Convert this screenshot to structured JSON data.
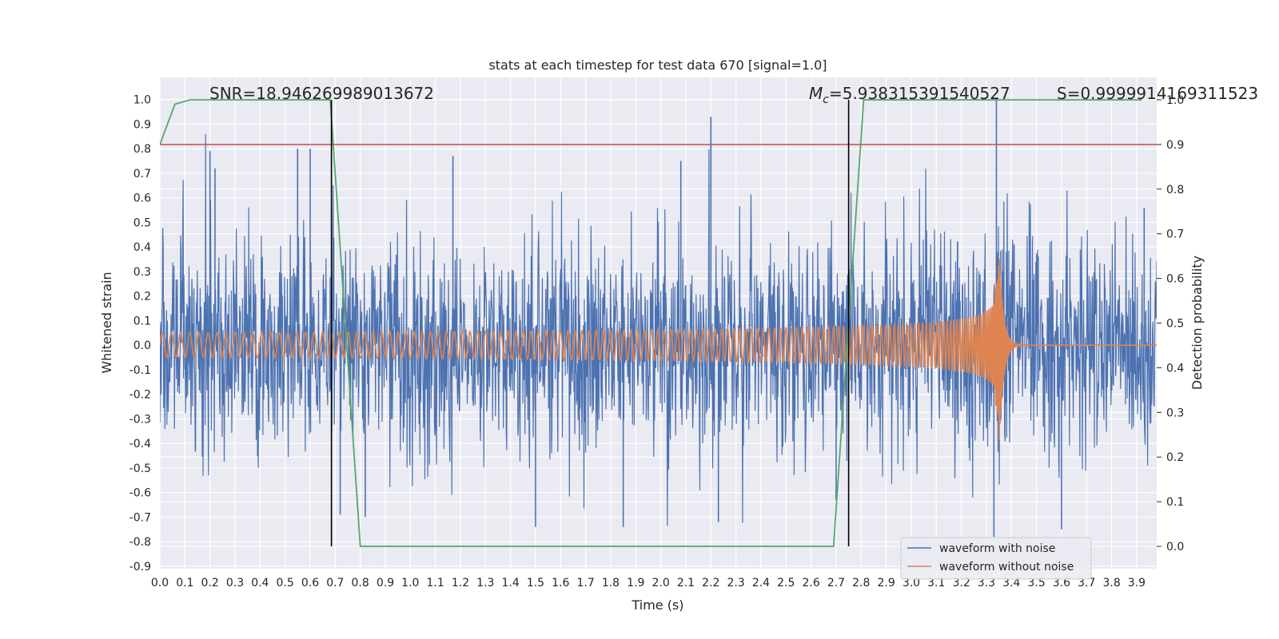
{
  "chart_data": {
    "type": "line",
    "title": "stats at each timestep for test data 670 [signal=1.0]",
    "xlabel": "Time (s)",
    "ylabel": "Whitened strain",
    "ylabel_right": "Detection probability",
    "xlim": [
      0.0,
      3.98
    ],
    "ylim": [
      -0.91,
      1.09
    ],
    "ylim_right": [
      -0.05,
      1.05
    ],
    "x_ticks": [
      "0.0",
      "0.1",
      "0.2",
      "0.3",
      "0.4",
      "0.5",
      "0.6",
      "0.7",
      "0.8",
      "0.9",
      "1.0",
      "1.1",
      "1.2",
      "1.3",
      "1.4",
      "1.5",
      "1.6",
      "1.7",
      "1.8",
      "1.9",
      "2.0",
      "2.1",
      "2.2",
      "2.3",
      "2.4",
      "2.5",
      "2.6",
      "2.7",
      "2.8",
      "2.9",
      "3.0",
      "3.1",
      "3.2",
      "3.3",
      "3.4",
      "3.5",
      "3.6",
      "3.7",
      "3.8",
      "3.9"
    ],
    "y_ticks": [
      "1.0",
      "0.9",
      "0.8",
      "0.7",
      "0.6",
      "0.5",
      "0.4",
      "0.3",
      "0.2",
      "0.1",
      "0.0",
      "-0.1",
      "-0.2",
      "-0.3",
      "-0.4",
      "-0.5",
      "-0.6",
      "-0.7",
      "-0.8",
      "-0.9"
    ],
    "y_right_ticks": [
      "1.0",
      "0.9",
      "0.8",
      "0.7",
      "0.6",
      "0.5",
      "0.4",
      "0.3",
      "0.2",
      "0.1",
      "0.0"
    ],
    "grid": true,
    "legend_position": "lower-right",
    "annotations": {
      "snr": "SNR=18.946269989013672",
      "mc_symbol": "M",
      "mc_sub": "c",
      "mc_value": "=5.938315391540527",
      "s": "S=0.9999914169311523"
    },
    "series": [
      {
        "name": "waveform with noise",
        "color": "#4c72b0",
        "description_type": "noise",
        "envelope": 0.38,
        "notable_peaks": [
          {
            "x": 0.2,
            "y": 0.79
          },
          {
            "x": 0.22,
            "y": 0.72
          },
          {
            "x": 0.55,
            "y": 0.8
          },
          {
            "x": 0.6,
            "y": 0.8
          },
          {
            "x": 0.72,
            "y": -0.69
          },
          {
            "x": 0.82,
            "y": -0.7
          },
          {
            "x": 1.17,
            "y": 0.77
          },
          {
            "x": 1.5,
            "y": -0.74
          },
          {
            "x": 1.85,
            "y": -0.74
          },
          {
            "x": 2.08,
            "y": 0.75
          },
          {
            "x": 2.2,
            "y": 0.93
          },
          {
            "x": 2.23,
            "y": -0.72
          },
          {
            "x": 2.7,
            "y": -0.63
          },
          {
            "x": 3.34,
            "y": 1.0
          },
          {
            "x": 3.33,
            "y": -0.78
          },
          {
            "x": 3.6,
            "y": -0.75
          },
          {
            "x": 3.93,
            "y": 0.56
          }
        ]
      },
      {
        "name": "waveform without noise",
        "color": "#dd8452",
        "description_type": "chirp",
        "t_merger": 3.35,
        "amplitude_start": 0.05,
        "amplitude_peak": 0.45,
        "freq_start_hz": 27
      },
      {
        "name": "",
        "color": "#55a868",
        "axis": "right",
        "x": [
          0.0,
          0.06,
          0.12,
          0.68,
          0.8,
          0.88,
          2.69,
          2.75,
          2.81,
          3.92
        ],
        "y": [
          0.9,
          0.99,
          1.0,
          1.0,
          0.0,
          0.0,
          0.0,
          0.5,
          1.0,
          1.0
        ]
      }
    ],
    "hlines": [
      {
        "y": 0.9,
        "axis": "right",
        "color": "#c44e52"
      }
    ],
    "vlines": [
      {
        "x": 0.685,
        "color": "#000000"
      },
      {
        "x": 2.75,
        "color": "#000000"
      }
    ]
  }
}
